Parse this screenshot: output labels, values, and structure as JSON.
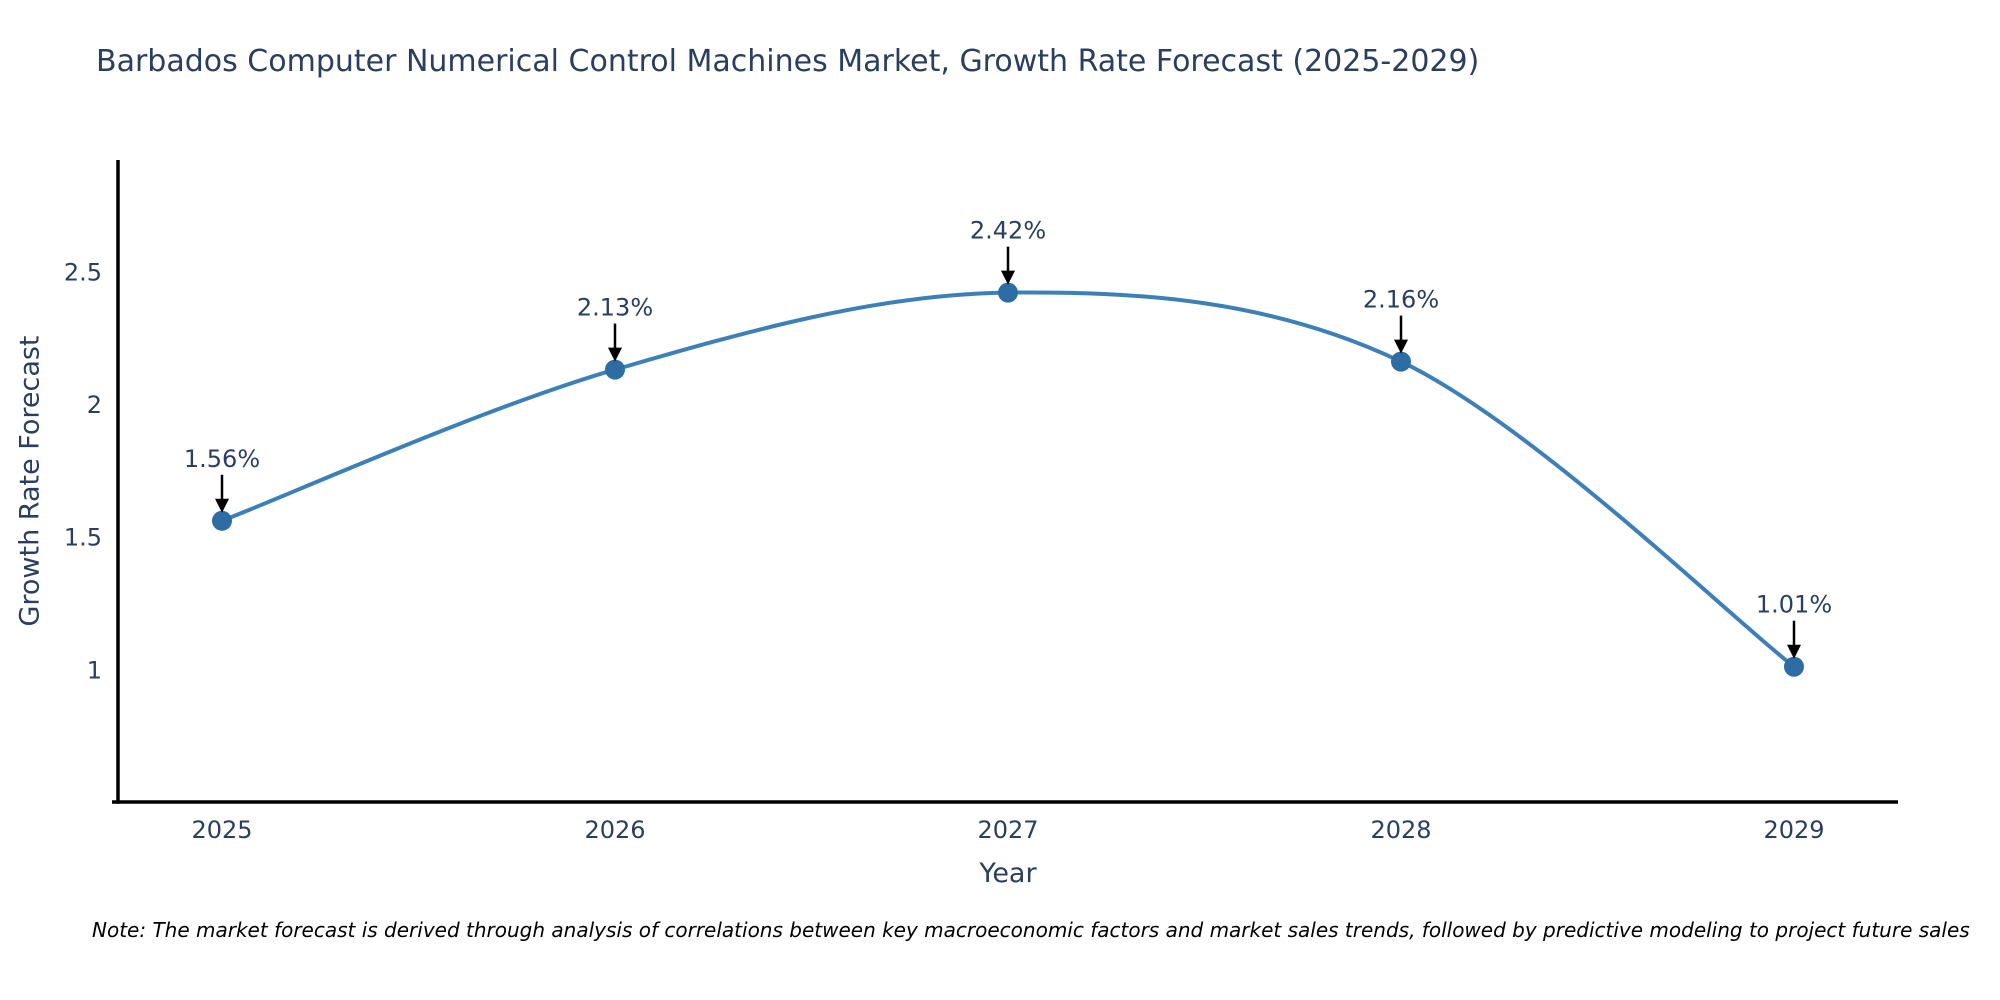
{
  "title": "Barbados Computer Numerical Control Machines Market, Growth Rate Forecast (2025-2029)",
  "note": "Note: The market forecast is derived through analysis of correlations between key macroeconomic factors and market sales trends, followed by predictive modeling to project future sales",
  "chart_data": {
    "type": "line",
    "title": "Barbados Computer Numerical Control Machines Market, Growth Rate Forecast (2025-2029)",
    "xlabel": "Year",
    "ylabel": "Growth Rate Forecast",
    "x": [
      2025,
      2026,
      2027,
      2028,
      2029
    ],
    "y": [
      1.56,
      2.13,
      2.42,
      2.16,
      1.01
    ],
    "point_labels": [
      "1.56%",
      "2.13%",
      "2.42%",
      "2.16%",
      "1.01%"
    ],
    "x_tick_labels": [
      "2025",
      "2026",
      "2027",
      "2028",
      "2029"
    ],
    "y_ticks": [
      1,
      1.5,
      2,
      2.5
    ],
    "y_tick_labels": [
      "1",
      "1.5",
      "2",
      "2.5"
    ],
    "ylim": [
      0.5,
      2.92
    ],
    "grid": false,
    "legend": "none",
    "line_shape": "spline",
    "colors": {
      "line": "#3d80b8",
      "marker": "#2e6da4",
      "axis": "#000000",
      "text": "#2a3f5f",
      "annotation_arrow": "#000000",
      "note_text": "#000000",
      "background": "#ffffff"
    }
  }
}
